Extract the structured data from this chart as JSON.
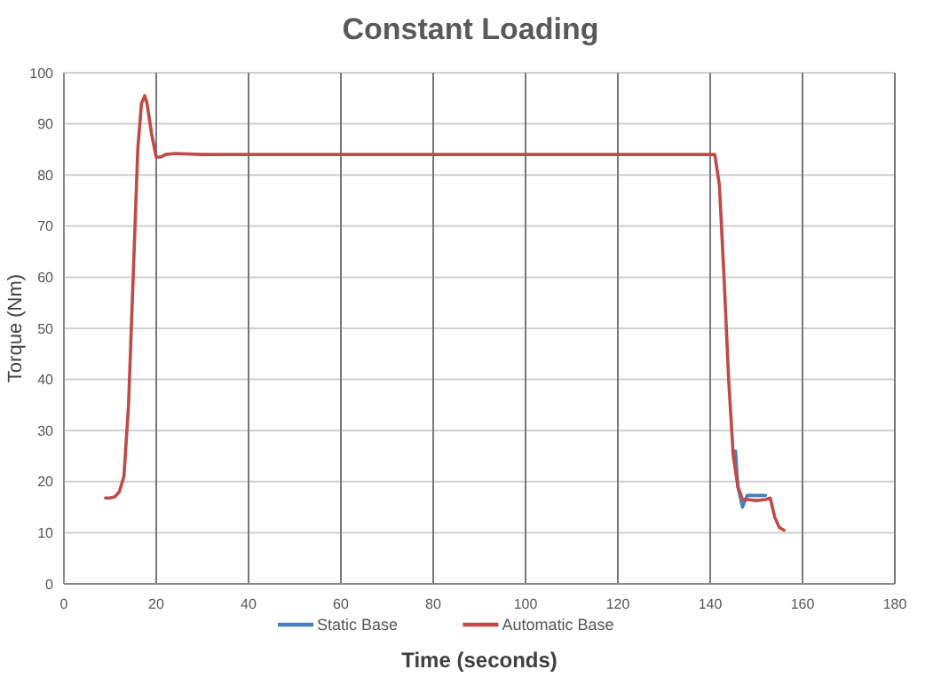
{
  "chart_data": {
    "type": "line",
    "title": "Constant Loading",
    "xlabel": "Time (seconds)",
    "ylabel": "Torque (Nm)",
    "xlim": [
      0,
      180
    ],
    "xticks": [
      0,
      20,
      40,
      60,
      80,
      100,
      120,
      140,
      160,
      180
    ],
    "ylim": [
      0,
      100
    ],
    "yticks": [
      0,
      10,
      20,
      30,
      40,
      50,
      60,
      70,
      80,
      90,
      100
    ],
    "grid": true,
    "legend": "bottom",
    "marker": "none",
    "line_style": "solid",
    "series": [
      {
        "name": "Static Base",
        "color": "#4a7ebb",
        "x": [
          145.5,
          146,
          147,
          148,
          150,
          152
        ],
        "values": [
          26,
          19,
          15,
          17.3,
          17.3,
          17.3
        ]
      },
      {
        "name": "Automatic Base",
        "color": "#be4b48",
        "x": [
          9,
          10,
          11,
          12,
          13,
          14,
          15,
          16,
          16.8,
          17.5,
          18,
          19,
          20,
          21,
          22,
          24,
          30,
          60,
          100,
          130,
          140,
          141,
          142,
          143,
          144,
          145,
          146,
          147,
          148,
          150,
          152,
          153,
          154,
          155,
          156
        ],
        "values": [
          16.8,
          16.8,
          17,
          18,
          21,
          35,
          60,
          85,
          94,
          95.5,
          94,
          88,
          83.5,
          83.5,
          84,
          84.2,
          84,
          84,
          84,
          84,
          84,
          84,
          78,
          60,
          40,
          25,
          19,
          16.5,
          16.5,
          16.3,
          16.5,
          16.8,
          13,
          11,
          10.5
        ]
      }
    ]
  }
}
